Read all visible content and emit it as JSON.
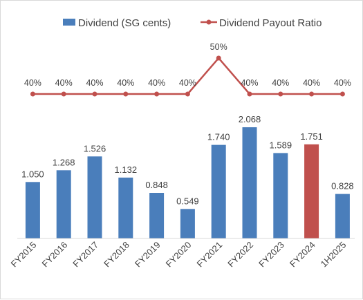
{
  "chart_data": {
    "type": "bar",
    "categories": [
      "FY2015",
      "FY2016",
      "FY2017",
      "FY2018",
      "FY2019",
      "FY2020",
      "FY2021",
      "FY2022",
      "FY2023",
      "FY2024",
      "1H2025"
    ],
    "series": [
      {
        "name": "Dividend (SG cents)",
        "type": "bar",
        "values": [
          1.05,
          1.268,
          1.526,
          1.132,
          0.848,
          0.549,
          1.74,
          2.068,
          1.589,
          1.751,
          0.828
        ],
        "data_labels": [
          "1.050",
          "1.268",
          "1.526",
          "1.132",
          "0.848",
          "0.549",
          "1.740",
          "2.068",
          "1.589",
          "1.751",
          "0.828"
        ],
        "color": "#4a7ebb",
        "highlight": {
          "category": "FY2024",
          "color": "#c0504d"
        }
      },
      {
        "name": "Dividend Payout Ratio",
        "type": "line",
        "values": [
          40,
          40,
          40,
          40,
          40,
          40,
          50,
          40,
          40,
          40,
          40
        ],
        "data_labels": [
          "40%",
          "40%",
          "40%",
          "40%",
          "40%",
          "40%",
          "50%",
          "40%",
          "40%",
          "40%",
          "40%"
        ],
        "color": "#c0504d"
      }
    ],
    "legend_position": "top-right",
    "gridlines": false,
    "xlabel": "",
    "ylabel": ""
  }
}
